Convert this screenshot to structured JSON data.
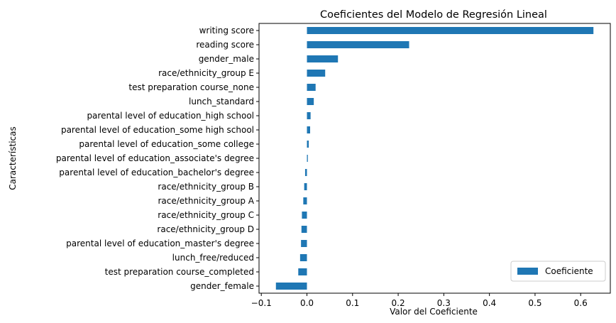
{
  "chart_data": {
    "type": "bar",
    "orientation": "horizontal",
    "title": "Coeficientes del Modelo de Regresión Lineal",
    "xlabel": "Valor del Coeficiente",
    "ylabel": "Características",
    "xlim": [
      -0.105,
      0.665
    ],
    "xticks": [
      -0.1,
      0.0,
      0.1,
      0.2,
      0.3,
      0.4,
      0.5,
      0.6
    ],
    "xtick_labels": [
      "−0.1",
      "0.0",
      "0.1",
      "0.2",
      "0.3",
      "0.4",
      "0.5",
      "0.6"
    ],
    "grid": false,
    "legend_position": "bottom-right",
    "bar_color": "#1f77b4",
    "series": [
      {
        "name": "Coeficiente",
        "categories": [
          "writing score",
          "reading score",
          "gender_male",
          "race/ethnicity_group E",
          "test preparation course_none",
          "lunch_standard",
          "parental level of education_high school",
          "parental level of education_some high school",
          "parental level of education_some college",
          "parental level of education_associate's degree",
          "parental level of education_bachelor's degree",
          "race/ethnicity_group B",
          "race/ethnicity_group A",
          "race/ethnicity_group C",
          "race/ethnicity_group D",
          "parental level of education_master's degree",
          "lunch_free/reduced",
          "test preparation course_completed",
          "gender_female"
        ],
        "values": [
          0.628,
          0.224,
          0.068,
          0.04,
          0.019,
          0.015,
          0.008,
          0.007,
          0.004,
          0.002,
          -0.004,
          -0.006,
          -0.008,
          -0.011,
          -0.012,
          -0.013,
          -0.015,
          -0.019,
          -0.068
        ]
      }
    ]
  }
}
